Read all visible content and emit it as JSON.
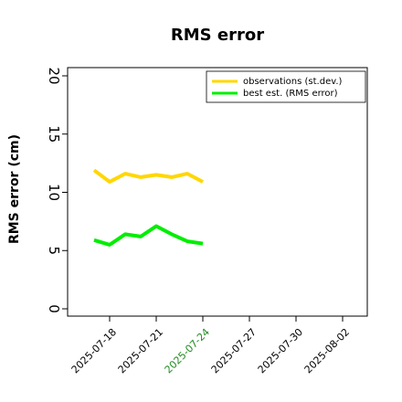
{
  "chart_data": {
    "type": "line",
    "title": "RMS error",
    "ylabel": "RMS error (cm)",
    "xlabel": "",
    "ylim": [
      0,
      20
    ],
    "yticks": [
      0,
      5,
      10,
      15,
      20
    ],
    "x_tick_labels": [
      {
        "label": "2025-07-18",
        "color": "#000000"
      },
      {
        "label": "2025-07-21",
        "color": "#000000"
      },
      {
        "label": "2025-07-24",
        "color": "#228B22"
      },
      {
        "label": "2025-07-27",
        "color": "#000000"
      },
      {
        "label": "2025-07-30",
        "color": "#000000"
      },
      {
        "label": "2025-08-02",
        "color": "#000000"
      }
    ],
    "grid": false,
    "legend_position": "top-right",
    "series": [
      {
        "name": "observations (st.dev.)",
        "color": "#FFD700",
        "x": [
          "2025-07-17",
          "2025-07-18",
          "2025-07-19",
          "2025-07-20",
          "2025-07-21",
          "2025-07-22",
          "2025-07-23",
          "2025-07-24"
        ],
        "values": [
          11.9,
          10.9,
          11.6,
          11.3,
          11.5,
          11.3,
          11.6,
          10.9
        ]
      },
      {
        "name": "best est. (RMS error)",
        "color": "#00EE00",
        "x": [
          "2025-07-17",
          "2025-07-18",
          "2025-07-19",
          "2025-07-20",
          "2025-07-21",
          "2025-07-22",
          "2025-07-23",
          "2025-07-24"
        ],
        "values": [
          5.9,
          5.5,
          6.4,
          6.2,
          7.1,
          6.4,
          5.8,
          5.6
        ]
      }
    ]
  }
}
